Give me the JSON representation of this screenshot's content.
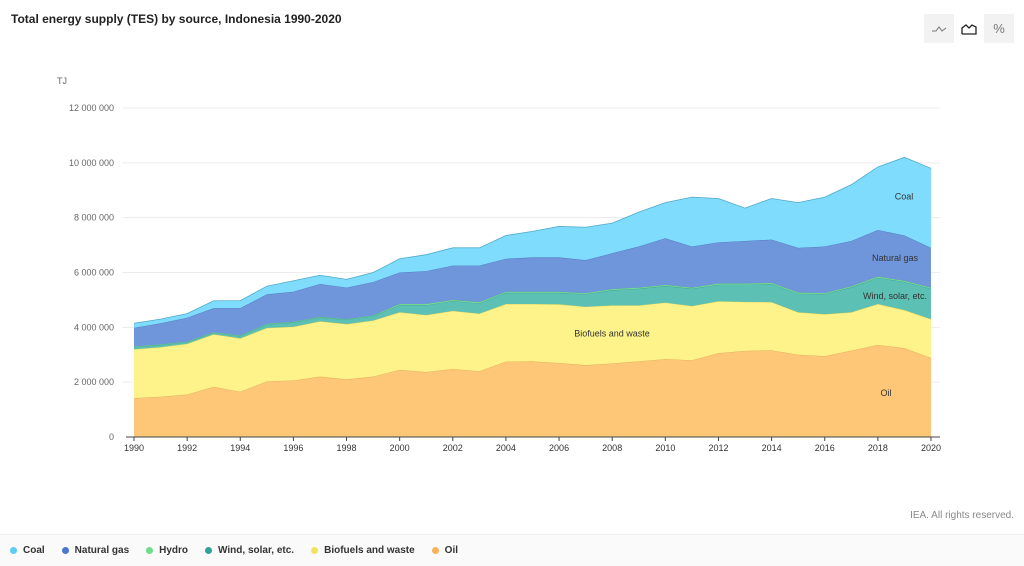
{
  "chart_data": {
    "type": "area",
    "stacked": true,
    "title": "Total energy supply (TES) by source, Indonesia 1990-2020",
    "ylabel": "TJ",
    "xlabel": "",
    "ylim": [
      0,
      12000000
    ],
    "yticks": [
      0,
      2000000,
      4000000,
      6000000,
      8000000,
      10000000,
      12000000
    ],
    "ytick_labels": [
      "0",
      "2 000 000",
      "4 000 000",
      "6 000 000",
      "8 000 000",
      "10 000 000",
      "12 000 000"
    ],
    "xticks": [
      1990,
      1992,
      1994,
      1996,
      1998,
      2000,
      2002,
      2004,
      2006,
      2008,
      2010,
      2012,
      2014,
      2016,
      2018,
      2020
    ],
    "x": [
      1990,
      1991,
      1992,
      1993,
      1994,
      1995,
      1996,
      1997,
      1998,
      1999,
      2000,
      2001,
      2002,
      2003,
      2004,
      2005,
      2006,
      2007,
      2008,
      2009,
      2010,
      2011,
      2012,
      2013,
      2014,
      2015,
      2016,
      2017,
      2018,
      2019,
      2020
    ],
    "grid": true,
    "legend_position": "bottom",
    "series": [
      {
        "name": "Oil",
        "color": "#fdc777",
        "stroke": "#e0a85a",
        "label": "Oil",
        "values": [
          1420000,
          1470000,
          1550000,
          1830000,
          1650000,
          2030000,
          2060000,
          2200000,
          2100000,
          2200000,
          2450000,
          2370000,
          2480000,
          2400000,
          2750000,
          2760000,
          2700000,
          2620000,
          2680000,
          2760000,
          2840000,
          2800000,
          3060000,
          3140000,
          3160000,
          3000000,
          2950000,
          3150000,
          3360000,
          3240000,
          2880000
        ]
      },
      {
        "name": "Biofuels and waste",
        "color": "#fdf38a",
        "stroke": "#d8cc5a",
        "label": "Biofuels and waste",
        "values": [
          1780000,
          1810000,
          1850000,
          1920000,
          1950000,
          1950000,
          1960000,
          2020000,
          2020000,
          2050000,
          2100000,
          2080000,
          2120000,
          2100000,
          2100000,
          2090000,
          2140000,
          2130000,
          2120000,
          2040000,
          2060000,
          1980000,
          1890000,
          1790000,
          1760000,
          1550000,
          1530000,
          1400000,
          1490000,
          1390000,
          1420000
        ]
      },
      {
        "name": "Wind, solar, etc.",
        "color": "#5cc0b5",
        "stroke": "#3fa096",
        "label": "Wind, solar, etc.",
        "values": [
          80000,
          80000,
          60000,
          50000,
          80000,
          130000,
          160000,
          140000,
          160000,
          160000,
          260000,
          360000,
          360000,
          380000,
          410000,
          410000,
          420000,
          460000,
          560000,
          610000,
          610000,
          630000,
          610000,
          630000,
          660000,
          680000,
          730000,
          910000,
          960000,
          1030000,
          1110000
        ]
      },
      {
        "name": "Hydro",
        "color": "#7ee39a",
        "stroke": "#5cc67a",
        "label": "",
        "values": [
          20000,
          20000,
          20000,
          20000,
          20000,
          20000,
          20000,
          20000,
          20000,
          20000,
          40000,
          40000,
          40000,
          40000,
          40000,
          40000,
          40000,
          40000,
          40000,
          40000,
          40000,
          40000,
          40000,
          40000,
          40000,
          40000,
          40000,
          40000,
          40000,
          40000,
          40000
        ]
      },
      {
        "name": "Natural gas",
        "color": "#6f95db",
        "stroke": "#5076bd",
        "label": "Natural gas",
        "values": [
          680000,
          770000,
          870000,
          880000,
          1000000,
          1070000,
          1100000,
          1200000,
          1150000,
          1220000,
          1150000,
          1200000,
          1250000,
          1330000,
          1200000,
          1250000,
          1250000,
          1200000,
          1300000,
          1500000,
          1700000,
          1500000,
          1500000,
          1550000,
          1580000,
          1630000,
          1700000,
          1650000,
          1700000,
          1650000,
          1450000
        ]
      },
      {
        "name": "Coal",
        "color": "#7fdcfd",
        "stroke": "#4fa9c9",
        "label": "Coal",
        "values": [
          170000,
          150000,
          150000,
          270000,
          270000,
          300000,
          400000,
          320000,
          300000,
          350000,
          500000,
          600000,
          650000,
          650000,
          850000,
          950000,
          1130000,
          1200000,
          1100000,
          1250000,
          1300000,
          1800000,
          1600000,
          1200000,
          1500000,
          1650000,
          1800000,
          2050000,
          2300000,
          2850000,
          2900000
        ]
      }
    ]
  },
  "ui": {
    "title": "Total energy supply (TES) by source, Indonesia 1990-2020",
    "buttons": [
      {
        "icon": "line-chart-icon",
        "label": ""
      },
      {
        "icon": "area-chart-icon",
        "label": ""
      },
      {
        "icon": "percent-icon",
        "label": "%"
      }
    ],
    "rights": "IEA. All rights reserved.",
    "legend": [
      {
        "label": "Coal",
        "color": "#5ccdf2"
      },
      {
        "label": "Natural gas",
        "color": "#4a78cf"
      },
      {
        "label": "Hydro",
        "color": "#6fdc8c"
      },
      {
        "label": "Wind, solar, etc.",
        "color": "#2fa39a"
      },
      {
        "label": "Biofuels and waste",
        "color": "#f2e35c"
      },
      {
        "label": "Oil",
        "color": "#f5b35a"
      }
    ]
  }
}
